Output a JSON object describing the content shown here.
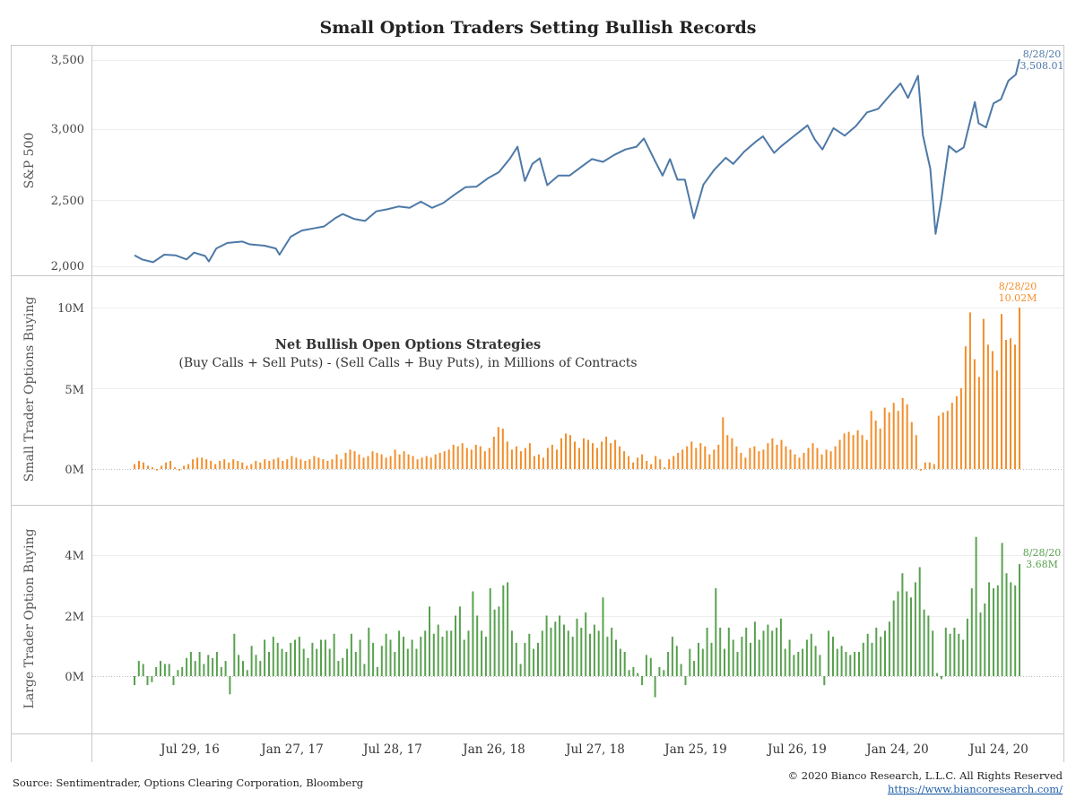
{
  "colors": {
    "sp500": "#4e79a7",
    "small": "#f28e2b",
    "large": "#59a14f",
    "link": "#1f5fa8"
  },
  "footer": {
    "source": "Source: Sentimentrader, Options Clearing Corporation, Bloomberg",
    "copyright": "© 2020 Bianco Research, L.L.C. All Rights Reserved",
    "url": "https://www.biancoresearch.com/"
  },
  "chart_data": {
    "type": "line",
    "title": "Small Option Traders Setting Bullish Records",
    "x_ticks": [
      "Jul 29, 16",
      "Jan 27, 17",
      "Jul 28, 17",
      "Jan 26, 18",
      "Jul 27, 18",
      "Jan 25, 19",
      "Jul 26, 19",
      "Jan 24, 20",
      "Jul 24, 20"
    ],
    "x_range": [
      "2016-02-05",
      "2020-08-28"
    ],
    "panels": [
      {
        "type": "line",
        "ylabel": "S&P 500",
        "yticks": [
          "2,000",
          "2,500",
          "3,000",
          "3,500"
        ],
        "ylim": [
          1970,
          3600
        ],
        "end_label": {
          "date": "8/28/20",
          "value": "3,508.01"
        },
        "series": [
          {
            "points": [
              [
                "2016-02-05",
                2080
              ],
              [
                "2016-02-19",
                2050
              ],
              [
                "2016-03-11",
                2030
              ],
              [
                "2016-04-01",
                2085
              ],
              [
                "2016-04-22",
                2080
              ],
              [
                "2016-05-13",
                2050
              ],
              [
                "2016-05-27",
                2100
              ],
              [
                "2016-06-17",
                2075
              ],
              [
                "2016-06-24",
                2035
              ],
              [
                "2016-07-08",
                2130
              ],
              [
                "2016-07-29",
                2170
              ],
              [
                "2016-08-26",
                2180
              ],
              [
                "2016-09-09",
                2160
              ],
              [
                "2016-10-07",
                2150
              ],
              [
                "2016-10-28",
                2130
              ],
              [
                "2016-11-04",
                2085
              ],
              [
                "2016-11-25",
                2215
              ],
              [
                "2016-12-16",
                2260
              ],
              [
                "2017-01-06",
                2275
              ],
              [
                "2017-01-27",
                2290
              ],
              [
                "2017-02-17",
                2350
              ],
              [
                "2017-03-03",
                2380
              ],
              [
                "2017-03-24",
                2345
              ],
              [
                "2017-04-14",
                2330
              ],
              [
                "2017-05-05",
                2400
              ],
              [
                "2017-05-26",
                2415
              ],
              [
                "2017-06-16",
                2435
              ],
              [
                "2017-07-07",
                2425
              ],
              [
                "2017-07-28",
                2470
              ],
              [
                "2017-08-18",
                2425
              ],
              [
                "2017-09-08",
                2460
              ],
              [
                "2017-09-29",
                2520
              ],
              [
                "2017-10-20",
                2575
              ],
              [
                "2017-11-10",
                2580
              ],
              [
                "2017-12-01",
                2640
              ],
              [
                "2017-12-22",
                2685
              ],
              [
                "2018-01-12",
                2785
              ],
              [
                "2018-01-26",
                2870
              ],
              [
                "2018-02-09",
                2620
              ],
              [
                "2018-02-23",
                2745
              ],
              [
                "2018-03-09",
                2785
              ],
              [
                "2018-03-23",
                2590
              ],
              [
                "2018-04-13",
                2660
              ],
              [
                "2018-05-04",
                2660
              ],
              [
                "2018-05-25",
                2720
              ],
              [
                "2018-06-15",
                2780
              ],
              [
                "2018-07-06",
                2760
              ],
              [
                "2018-07-27",
                2810
              ],
              [
                "2018-08-17",
                2850
              ],
              [
                "2018-09-07",
                2870
              ],
              [
                "2018-09-21",
                2930
              ],
              [
                "2018-10-12",
                2765
              ],
              [
                "2018-10-26",
                2660
              ],
              [
                "2018-11-09",
                2780
              ],
              [
                "2018-11-23",
                2630
              ],
              [
                "2018-12-07",
                2630
              ],
              [
                "2018-12-24",
                2350
              ],
              [
                "2019-01-11",
                2595
              ],
              [
                "2019-02-01",
                2705
              ],
              [
                "2019-02-22",
                2790
              ],
              [
                "2019-03-08",
                2745
              ],
              [
                "2019-03-29",
                2835
              ],
              [
                "2019-04-19",
                2905
              ],
              [
                "2019-05-03",
                2945
              ],
              [
                "2019-05-24",
                2825
              ],
              [
                "2019-06-07",
                2875
              ],
              [
                "2019-06-28",
                2940
              ],
              [
                "2019-07-26",
                3025
              ],
              [
                "2019-08-09",
                2920
              ],
              [
                "2019-08-23",
                2850
              ],
              [
                "2019-09-13",
                3005
              ],
              [
                "2019-10-04",
                2950
              ],
              [
                "2019-10-25",
                3020
              ],
              [
                "2019-11-15",
                3120
              ],
              [
                "2019-12-06",
                3145
              ],
              [
                "2019-12-27",
                3240
              ],
              [
                "2020-01-17",
                3330
              ],
              [
                "2020-01-31",
                3225
              ],
              [
                "2020-02-19",
                3386
              ],
              [
                "2020-02-28",
                2955
              ],
              [
                "2020-03-13",
                2710
              ],
              [
                "2020-03-23",
                2237
              ],
              [
                "2020-04-03",
                2490
              ],
              [
                "2020-04-17",
                2875
              ],
              [
                "2020-05-01",
                2830
              ],
              [
                "2020-05-15",
                2865
              ],
              [
                "2020-06-05",
                3195
              ],
              [
                "2020-06-12",
                3040
              ],
              [
                "2020-06-26",
                3010
              ],
              [
                "2020-07-10",
                3185
              ],
              [
                "2020-07-24",
                3215
              ],
              [
                "2020-08-07",
                3350
              ],
              [
                "2020-08-21",
                3395
              ],
              [
                "2020-08-28",
                3508
              ]
            ]
          }
        ]
      },
      {
        "type": "bar",
        "ylabel": "Small Trader Options Buying",
        "yticks": [
          "0M",
          "5M",
          "10M"
        ],
        "ylim": [
          -0.5,
          10.3
        ],
        "annotation_title": "Net Bullish Open Options Strategies",
        "annotation_subtitle": "(Buy Calls + Sell Puts) - (Sell Calls + Buy Puts), in Millions of Contracts",
        "end_label": {
          "date": "8/28/20",
          "value": "10.02M"
        },
        "series": [
          {
            "values_millions": [
              0.3,
              0.5,
              0.4,
              0.2,
              0.1,
              -0.1,
              0.2,
              0.4,
              0.5,
              0.1,
              -0.1,
              0.2,
              0.3,
              0.6,
              0.7,
              0.7,
              0.6,
              0.5,
              0.3,
              0.5,
              0.6,
              0.4,
              0.6,
              0.5,
              0.4,
              0.2,
              0.3,
              0.5,
              0.4,
              0.6,
              0.5,
              0.6,
              0.7,
              0.5,
              0.6,
              0.8,
              0.7,
              0.6,
              0.5,
              0.6,
              0.8,
              0.7,
              0.6,
              0.5,
              0.6,
              0.9,
              0.6,
              1.0,
              1.2,
              1.1,
              0.9,
              0.7,
              0.8,
              1.1,
              1.0,
              0.9,
              0.7,
              0.8,
              1.2,
              0.9,
              1.1,
              0.9,
              0.8,
              0.6,
              0.7,
              0.8,
              0.7,
              0.9,
              1.0,
              1.1,
              1.2,
              1.5,
              1.4,
              1.6,
              1.3,
              1.2,
              1.5,
              1.4,
              1.1,
              1.3,
              2.0,
              2.6,
              2.5,
              1.7,
              1.2,
              1.4,
              1.1,
              1.3,
              1.6,
              0.8,
              0.9,
              0.7,
              1.3,
              1.5,
              1.2,
              1.9,
              2.2,
              2.1,
              1.7,
              1.3,
              1.9,
              1.8,
              1.6,
              1.3,
              1.7,
              2.0,
              1.6,
              1.8,
              1.4,
              1.1,
              0.8,
              0.4,
              0.7,
              0.9,
              0.5,
              0.3,
              0.8,
              0.6,
              0.1,
              0.6,
              0.8,
              1.0,
              1.2,
              1.4,
              1.7,
              1.3,
              1.6,
              1.4,
              0.9,
              1.2,
              1.5,
              3.2,
              2.1,
              1.9,
              1.4,
              1.0,
              0.7,
              1.3,
              1.4,
              1.1,
              1.2,
              1.6,
              1.9,
              1.5,
              1.8,
              1.4,
              1.2,
              0.9,
              0.7,
              1.0,
              1.3,
              1.6,
              1.3,
              0.9,
              1.2,
              1.1,
              1.4,
              1.8,
              2.2,
              2.3,
              2.1,
              2.4,
              2.1,
              1.8,
              3.6,
              3.0,
              2.5,
              3.8,
              3.5,
              4.1,
              3.6,
              4.4,
              4.0,
              2.9,
              2.1,
              -0.1,
              0.4,
              0.4,
              0.3,
              3.3,
              3.5,
              3.6,
              4.1,
              4.5,
              5.0,
              7.6,
              9.7,
              6.8,
              5.7,
              9.3,
              7.7,
              7.3,
              6.1,
              9.6,
              8.0,
              8.1,
              7.7,
              10.0
            ]
          }
        ]
      },
      {
        "type": "bar",
        "ylabel": "Large Trader Option Buying",
        "yticks": [
          "0M",
          "2M",
          "4M"
        ],
        "ylim": [
          -0.9,
          4.8
        ],
        "end_label": {
          "date": "8/28/20",
          "value": "3.68M"
        },
        "series": [
          {
            "values_millions": [
              -0.3,
              0.5,
              0.4,
              -0.3,
              -0.2,
              0.3,
              0.5,
              0.4,
              0.4,
              -0.3,
              0.2,
              0.3,
              0.6,
              0.8,
              0.5,
              0.8,
              0.4,
              0.7,
              0.6,
              0.8,
              0.3,
              0.5,
              -0.6,
              1.4,
              0.7,
              0.5,
              0.2,
              1.0,
              0.7,
              0.5,
              1.2,
              0.8,
              1.3,
              1.1,
              0.9,
              0.8,
              1.1,
              1.2,
              1.3,
              0.9,
              0.6,
              1.1,
              0.9,
              1.2,
              1.2,
              0.9,
              1.4,
              0.5,
              0.6,
              0.9,
              1.4,
              0.8,
              1.2,
              0.4,
              1.6,
              1.1,
              0.3,
              1.0,
              1.4,
              1.2,
              0.8,
              1.5,
              1.3,
              0.9,
              1.2,
              0.9,
              1.3,
              1.5,
              2.3,
              1.4,
              1.7,
              1.3,
              1.5,
              1.5,
              2.0,
              2.3,
              1.2,
              1.5,
              2.8,
              2.0,
              1.5,
              1.3,
              2.9,
              2.2,
              2.3,
              3.0,
              3.1,
              1.5,
              1.1,
              0.4,
              1.1,
              1.4,
              0.9,
              1.1,
              1.5,
              2.0,
              1.6,
              1.8,
              2.0,
              1.7,
              1.5,
              1.3,
              1.9,
              1.6,
              2.1,
              1.4,
              1.7,
              1.5,
              2.6,
              1.3,
              1.6,
              1.2,
              0.9,
              0.8,
              0.2,
              0.3,
              0.1,
              -0.3,
              0.7,
              0.6,
              -0.7,
              0.3,
              0.2,
              0.8,
              1.3,
              1.0,
              0.4,
              -0.3,
              0.9,
              0.5,
              1.1,
              0.9,
              1.6,
              1.1,
              2.9,
              1.6,
              0.9,
              1.6,
              1.2,
              0.8,
              1.3,
              1.6,
              1.1,
              1.8,
              1.2,
              1.5,
              1.7,
              1.5,
              1.6,
              1.9,
              0.9,
              1.2,
              0.7,
              0.8,
              0.9,
              1.2,
              1.4,
              1.0,
              0.7,
              -0.3,
              1.5,
              1.3,
              0.9,
              1.0,
              0.8,
              0.7,
              0.8,
              0.8,
              1.1,
              1.4,
              1.1,
              1.6,
              1.3,
              1.5,
              1.8,
              2.5,
              2.8,
              3.4,
              2.8,
              2.6,
              3.1,
              3.6,
              2.2,
              2.0,
              1.5,
              0.1,
              -0.1,
              1.6,
              1.4,
              1.6,
              1.4,
              1.2,
              1.9,
              2.9,
              4.6,
              2.1,
              2.4,
              3.1,
              2.9,
              3.0,
              4.4,
              3.4,
              3.1,
              3.0,
              3.7
            ]
          }
        ]
      }
    ]
  }
}
